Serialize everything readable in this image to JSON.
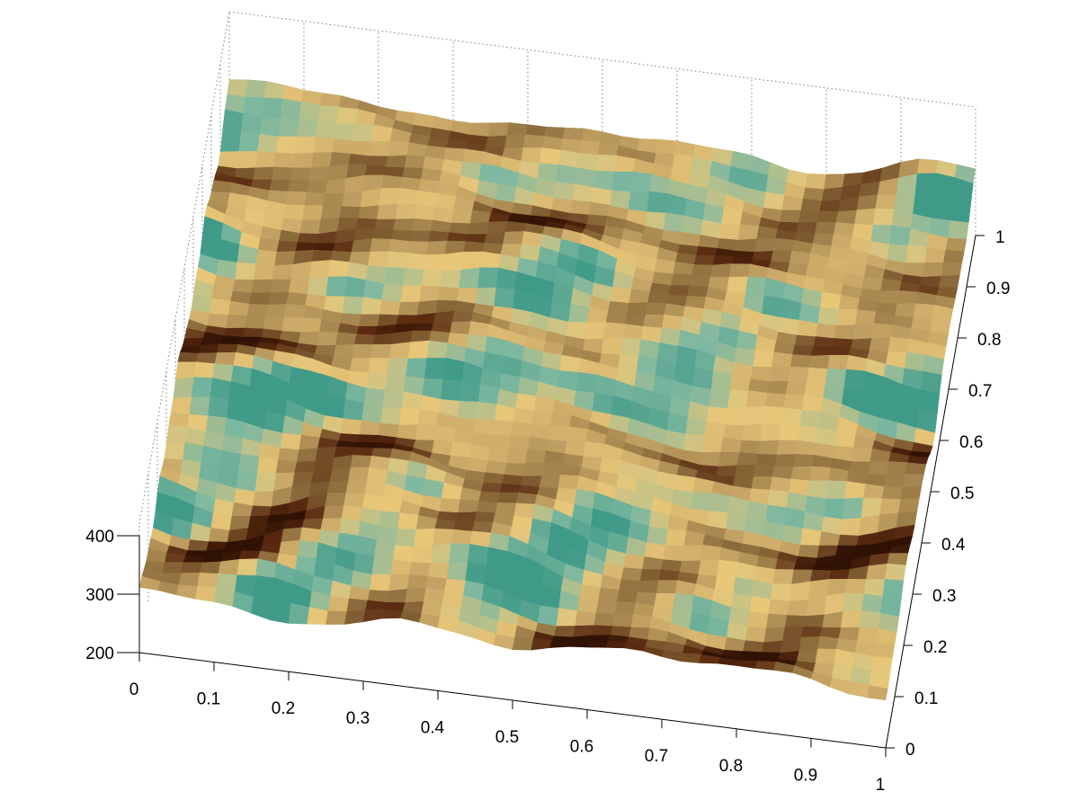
{
  "chart_data": {
    "type": "surface",
    "title": "",
    "xlabel": "",
    "ylabel": "",
    "zlabel": "",
    "x_ticks": [
      "0",
      "0.1",
      "0.2",
      "0.3",
      "0.4",
      "0.5",
      "0.6",
      "0.7",
      "0.8",
      "0.9",
      "1"
    ],
    "y_ticks": [
      "0",
      "0.1",
      "0.2",
      "0.3",
      "0.4",
      "0.5",
      "0.6",
      "0.7",
      "0.8",
      "0.9",
      "1"
    ],
    "z_ticks": [
      "200",
      "300",
      "400"
    ],
    "xlim": [
      0,
      1
    ],
    "ylim": [
      0,
      1
    ],
    "zlim": [
      200,
      400
    ],
    "grid": true,
    "colormap": [
      "#2f1204",
      "#5a2a10",
      "#8a6a3a",
      "#c9a868",
      "#e8c779",
      "#7fb8a0",
      "#3f9a88"
    ],
    "background": "#ffffff",
    "grid_color": "#808080"
  }
}
